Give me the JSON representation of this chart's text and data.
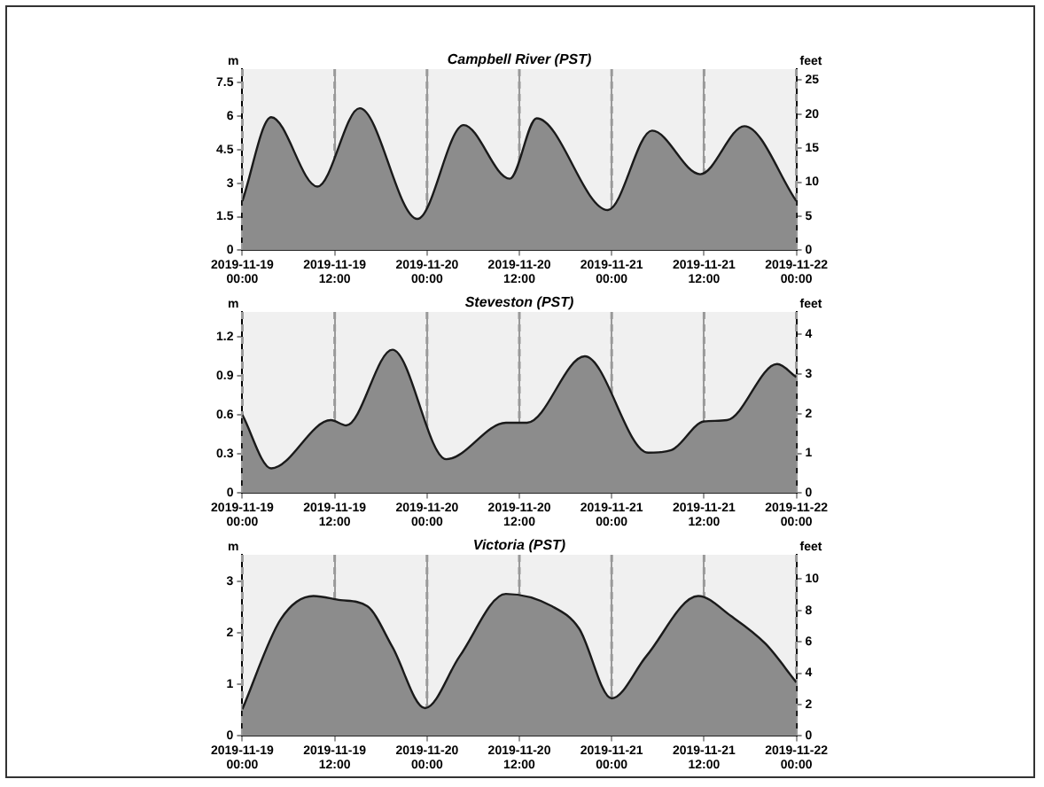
{
  "chart_data": [
    {
      "type": "area",
      "title": "Campbell River (PST)",
      "ylabel": "m",
      "y2label": "feet",
      "grid": "x",
      "xlim": [
        "2019-11-19T00:00",
        "2019-11-22T00:00"
      ],
      "xticks": [
        {
          "value": "2019-11-19T00:00",
          "label": "2019-11-19 00:00"
        },
        {
          "value": "2019-11-19T12:00",
          "label": "2019-11-19 12:00"
        },
        {
          "value": "2019-11-20T00:00",
          "label": "2019-11-20 00:00"
        },
        {
          "value": "2019-11-20T12:00",
          "label": "2019-11-20 12:00"
        },
        {
          "value": "2019-11-21T00:00",
          "label": "2019-11-21 00:00"
        },
        {
          "value": "2019-11-21T12:00",
          "label": "2019-11-21 12:00"
        },
        {
          "value": "2019-11-22T00:00",
          "label": "2019-11-22 00:00"
        }
      ],
      "ylim": [
        0,
        8.1
      ],
      "yticks": [
        0,
        1.5,
        3,
        4.5,
        6,
        7.5
      ],
      "y2lim": [
        0,
        26.6
      ],
      "y2ticks": [
        0,
        5,
        10,
        15,
        20,
        25
      ],
      "series": [
        {
          "color": "#8c8c8c",
          "x": [
            "2019-11-19T00:00",
            "2019-11-19T03:45",
            "2019-11-19T09:45",
            "2019-11-19T15:15",
            "2019-11-19T22:45",
            "2019-11-20T04:45",
            "2019-11-20T10:45",
            "2019-11-20T14:15",
            "2019-11-20T23:30",
            "2019-11-21T05:15",
            "2019-11-21T11:30",
            "2019-11-21T17:15",
            "2019-11-22T00:00"
          ],
          "values": [
            2.2,
            5.95,
            2.85,
            6.35,
            1.4,
            5.6,
            3.2,
            5.9,
            1.8,
            5.35,
            3.4,
            5.55,
            2.2
          ]
        }
      ]
    },
    {
      "type": "area",
      "title": "Steveston (PST)",
      "ylabel": "m",
      "y2label": "feet",
      "grid": "x",
      "xlim": [
        "2019-11-19T00:00",
        "2019-11-22T00:00"
      ],
      "xticks": [
        {
          "value": "2019-11-19T00:00",
          "label": "2019-11-19 00:00"
        },
        {
          "value": "2019-11-19T12:00",
          "label": "2019-11-19 12:00"
        },
        {
          "value": "2019-11-20T00:00",
          "label": "2019-11-20 00:00"
        },
        {
          "value": "2019-11-20T12:00",
          "label": "2019-11-20 12:00"
        },
        {
          "value": "2019-11-21T00:00",
          "label": "2019-11-21 00:00"
        },
        {
          "value": "2019-11-21T12:00",
          "label": "2019-11-21 12:00"
        },
        {
          "value": "2019-11-22T00:00",
          "label": "2019-11-22 00:00"
        }
      ],
      "ylim": [
        0,
        1.39
      ],
      "yticks": [
        0,
        0.3,
        0.6,
        0.9,
        1.2
      ],
      "y2lim": [
        0,
        4.56
      ],
      "y2ticks": [
        0,
        1,
        2,
        3,
        4
      ],
      "series": [
        {
          "color": "#8c8c8c",
          "x": [
            "2019-11-19T00:00",
            "2019-11-19T03:45",
            "2019-11-19T11:30",
            "2019-11-19T13:30",
            "2019-11-19T19:30",
            "2019-11-20T02:30",
            "2019-11-20T10:15",
            "2019-11-20T13:00",
            "2019-11-20T20:30",
            "2019-11-21T04:45",
            "2019-11-21T07:45",
            "2019-11-21T12:00",
            "2019-11-21T15:00",
            "2019-11-21T21:30",
            "2019-11-22T00:00"
          ],
          "values": [
            0.6,
            0.19,
            0.56,
            0.52,
            1.1,
            0.26,
            0.54,
            0.54,
            1.05,
            0.31,
            0.33,
            0.55,
            0.56,
            0.99,
            0.89
          ]
        }
      ]
    },
    {
      "type": "area",
      "title": "Victoria (PST)",
      "ylabel": "m",
      "y2label": "feet",
      "grid": "x",
      "xlim": [
        "2019-11-19T00:00",
        "2019-11-22T00:00"
      ],
      "xticks": [
        {
          "value": "2019-11-19T00:00",
          "label": "2019-11-19 00:00"
        },
        {
          "value": "2019-11-19T12:00",
          "label": "2019-11-19 12:00"
        },
        {
          "value": "2019-11-20T00:00",
          "label": "2019-11-20 00:00"
        },
        {
          "value": "2019-11-20T12:00",
          "label": "2019-11-20 12:00"
        },
        {
          "value": "2019-11-21T00:00",
          "label": "2019-11-21 00:00"
        },
        {
          "value": "2019-11-21T12:00",
          "label": "2019-11-21 12:00"
        },
        {
          "value": "2019-11-22T00:00",
          "label": "2019-11-22 00:00"
        }
      ],
      "ylim": [
        0,
        3.52
      ],
      "yticks": [
        0,
        1,
        2,
        3
      ],
      "y2lim": [
        0,
        11.55
      ],
      "y2ticks": [
        0,
        2,
        4,
        6,
        8,
        10
      ],
      "series": [
        {
          "color": "#8c8c8c",
          "x": [
            "2019-11-19T00:00",
            "2019-11-19T05:00",
            "2019-11-19T09:15",
            "2019-11-19T12:45",
            "2019-11-19T16:15",
            "2019-11-19T19:30",
            "2019-11-19T23:45",
            "2019-11-20T04:15",
            "2019-11-20T10:15",
            "2019-11-20T16:15",
            "2019-11-20T19:45",
            "2019-11-21T00:00",
            "2019-11-21T04:30",
            "2019-11-21T11:15",
            "2019-11-21T15:30",
            "2019-11-21T20:00",
            "2019-11-22T00:00"
          ],
          "values": [
            0.52,
            2.27,
            2.72,
            2.64,
            2.52,
            1.73,
            0.54,
            1.55,
            2.76,
            2.52,
            2.09,
            0.73,
            1.55,
            2.72,
            2.33,
            1.79,
            1.04
          ]
        }
      ]
    }
  ]
}
